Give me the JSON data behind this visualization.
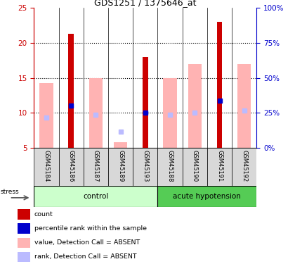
{
  "title": "GDS1251 / 1375646_at",
  "samples": [
    "GSM45184",
    "GSM45186",
    "GSM45187",
    "GSM45189",
    "GSM45193",
    "GSM45188",
    "GSM45190",
    "GSM45191",
    "GSM45192"
  ],
  "red_values": [
    null,
    21.3,
    null,
    null,
    18.0,
    null,
    null,
    23.0,
    null
  ],
  "pink_values": [
    14.3,
    null,
    15.0,
    5.8,
    null,
    15.0,
    17.0,
    null,
    17.0
  ],
  "blue_values": [
    null,
    11.0,
    null,
    null,
    10.0,
    null,
    null,
    11.7,
    null
  ],
  "lightblue_values": [
    9.3,
    null,
    9.7,
    7.3,
    null,
    9.7,
    10.0,
    null,
    10.3
  ],
  "ylim_left": [
    5,
    25
  ],
  "ylim_right": [
    0,
    100
  ],
  "yticks_left": [
    5,
    10,
    15,
    20,
    25
  ],
  "ytick_right_labels": [
    "0%",
    "25%",
    "50%",
    "75%",
    "100%"
  ],
  "bar_color_red": "#cc0000",
  "bar_color_pink": "#ffb3b3",
  "dot_color_blue": "#0000cc",
  "dot_color_lightblue": "#bbbbff",
  "left_axis_color": "#cc0000",
  "right_axis_color": "#0000cc",
  "bar_bottom": 5,
  "ctrl_color_light": "#ccffcc",
  "ctrl_color_dark": "#55cc55",
  "n_control": 5,
  "n_acute": 4
}
